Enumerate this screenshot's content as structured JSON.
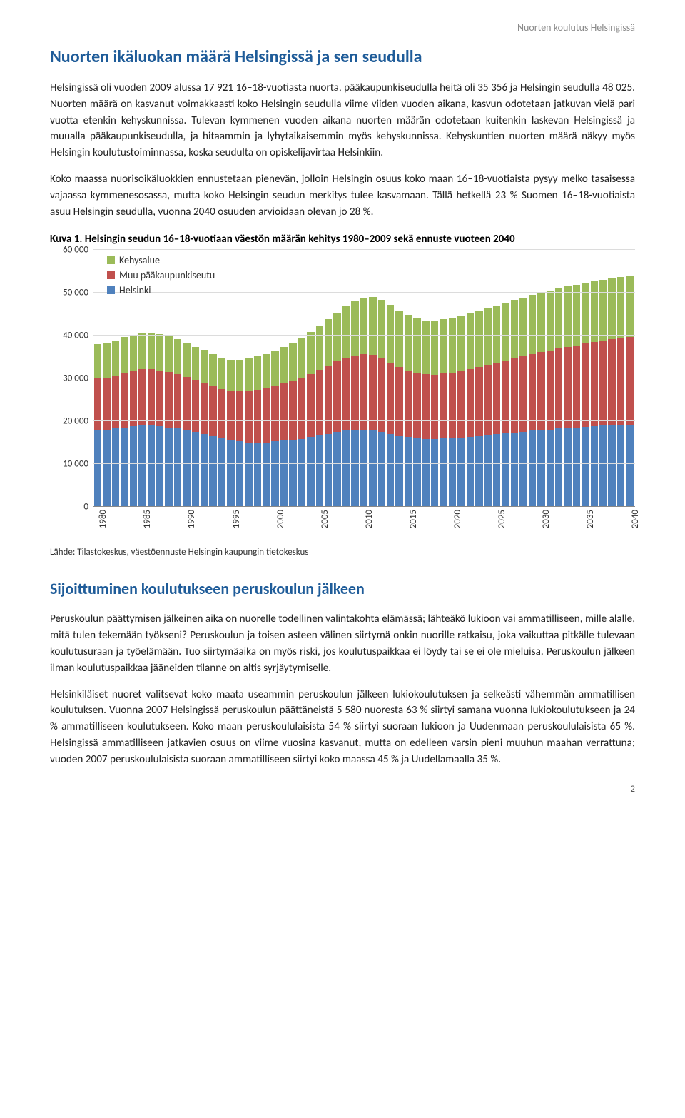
{
  "header_right": "Nuorten koulutus Helsingissä",
  "title": "Nuorten ikäluokan määrä Helsingissä ja sen seudulla",
  "para1": "Helsingissä oli vuoden 2009 alussa 17 921 16–18-vuotiasta nuorta, pääkaupunkiseudulla heitä oli 35 356 ja Helsingin seudulla 48 025. Nuorten määrä on kasvanut voimakkaasti koko Helsingin seudulla viime viiden vuoden aikana, kasvun odotetaan jatkuvan vielä pari vuotta etenkin kehyskunnissa. Tulevan kymmenen vuoden aikana nuorten määrän odotetaan kuitenkin laskevan Helsingissä ja muualla pääkaupunkiseudulla, ja hitaammin ja lyhytaikaisemmin myös kehyskunnissa. Kehyskuntien nuorten määrä näkyy myös Helsingin koulutustoiminnassa, koska seudulta on opiskelijavirtaa Helsinkiin.",
  "para2": "Koko maassa nuorisoikäluokkien ennustetaan pienevän, jolloin Helsingin osuus koko maan 16–18-vuotiaista pysyy melko tasaisessa vajaassa kymmenesosassa, mutta koko Helsingin seudun merkitys tulee kasvamaan. Tällä hetkellä 23 % Suomen 16–18-vuotiaista asuu Helsingin seudulla, vuonna 2040 osuuden arvioidaan olevan jo 28 %.",
  "chart_caption": "Kuva 1. Helsingin seudun 16–18-vuotiaan väestön määrän kehitys 1980–2009 sekä ennuste vuoteen 2040",
  "chart_source": "Lähde: Tilastokeskus, väestöennuste Helsingin kaupungin tietokeskus",
  "section2_title": "Sijoittuminen koulutukseen peruskoulun jälkeen",
  "para3": "Peruskoulun päättymisen jälkeinen aika on nuorelle todellinen valintakohta elämässä; lähteäkö lukioon vai ammatilliseen, mille alalle, mitä tulen tekemään työkseni? Peruskoulun ja toisen asteen välinen siirtymä onkin nuorille ratkaisu, joka vaikuttaa pitkälle tulevaan koulutusuraan ja työelämään. Tuo siirtymäaika on myös riski, jos koulutuspaikkaa ei löydy tai se ei ole mieluisa. Peruskoulun jälkeen ilman koulutuspaikkaa jääneiden tilanne on altis syrjäytymiselle.",
  "para4": "Helsinkiläiset nuoret valitsevat koko maata useammin peruskoulun jälkeen lukiokoulutuksen ja selkeästi vähemmän ammatillisen koulutuksen. Vuonna 2007 Helsingissä peruskoulun päättäneistä 5 580 nuoresta 63 % siirtyi samana vuonna lukiokoulutukseen ja 24 % ammatilliseen koulutukseen. Koko maan peruskoululaisista 54 % siirtyi suoraan lukioon ja Uudenmaan peruskoululaisista 65 %. Helsingissä ammatilliseen jatkavien osuus on viime vuosina kasvanut, mutta on edelleen varsin pieni muuhun maahan verrattuna; vuoden 2007 peruskoululaisista suoraan ammatilliseen siirtyi koko maassa 45 % ja Uudellamaalla 35 %.",
  "page_number": "2",
  "chart": {
    "type": "stacked-bar",
    "ymax": 60000,
    "ytick_step": 10000,
    "y_ticks": [
      0,
      10000,
      20000,
      30000,
      40000,
      50000,
      60000
    ],
    "x_labels_visible": [
      "1980",
      "1985",
      "1990",
      "1995",
      "2000",
      "2005",
      "2010",
      "2015",
      "2020",
      "2025",
      "2030",
      "2035",
      "2040"
    ],
    "x_label_step": 5,
    "colors": {
      "helsinki": "#4f81bd",
      "muu_pks": "#c0504d",
      "kehys": "#9bbb59",
      "grid": "#dcdcdc",
      "background": "#ffffff"
    },
    "legend": [
      {
        "label": "Kehysalue",
        "color": "#9bbb59"
      },
      {
        "label": "Muu pääkaupunkiseutu",
        "color": "#c0504d"
      },
      {
        "label": "Helsinki",
        "color": "#4f81bd"
      }
    ],
    "years": [
      1980,
      1981,
      1982,
      1983,
      1984,
      1985,
      1986,
      1987,
      1988,
      1989,
      1990,
      1991,
      1992,
      1993,
      1994,
      1995,
      1996,
      1997,
      1998,
      1999,
      2000,
      2001,
      2002,
      2003,
      2004,
      2005,
      2006,
      2007,
      2008,
      2009,
      2010,
      2011,
      2012,
      2013,
      2014,
      2015,
      2016,
      2017,
      2018,
      2019,
      2020,
      2021,
      2022,
      2023,
      2024,
      2025,
      2026,
      2027,
      2028,
      2029,
      2030,
      2031,
      2032,
      2033,
      2034,
      2035,
      2036,
      2037,
      2038,
      2039,
      2040
    ],
    "series": {
      "helsinki": [
        18000,
        18000,
        18200,
        18500,
        18800,
        19000,
        19000,
        18800,
        18500,
        18200,
        17800,
        17400,
        17000,
        16500,
        16000,
        15500,
        15200,
        15000,
        15000,
        15000,
        15200,
        15400,
        15600,
        15800,
        16200,
        16600,
        17000,
        17400,
        17700,
        17900,
        18000,
        17900,
        17500,
        17000,
        16500,
        16200,
        16000,
        15800,
        15800,
        15900,
        16000,
        16100,
        16300,
        16500,
        16700,
        16900,
        17100,
        17300,
        17500,
        17700,
        17900,
        18000,
        18200,
        18400,
        18500,
        18700,
        18800,
        18900,
        19000,
        19100,
        19200
      ],
      "muu_pks": [
        12000,
        12200,
        12500,
        12800,
        13000,
        13200,
        13200,
        13100,
        13000,
        12800,
        12500,
        12200,
        12000,
        11700,
        11500,
        11500,
        11700,
        12000,
        12300,
        12600,
        13000,
        13400,
        13800,
        14200,
        14800,
        15400,
        16000,
        16600,
        17100,
        17400,
        17600,
        17600,
        17200,
        16700,
        16200,
        15700,
        15400,
        15200,
        15100,
        15200,
        15400,
        15600,
        15900,
        16200,
        16500,
        16800,
        17100,
        17400,
        17700,
        18000,
        18300,
        18500,
        18800,
        19000,
        19200,
        19500,
        19700,
        19900,
        20100,
        20300,
        20500
      ],
      "kehys": [
        8000,
        8100,
        8200,
        8300,
        8400,
        8500,
        8500,
        8400,
        8300,
        8200,
        8000,
        7800,
        7600,
        7400,
        7300,
        7300,
        7400,
        7600,
        7800,
        8000,
        8300,
        8600,
        9000,
        9400,
        9800,
        10300,
        10800,
        11400,
        12000,
        12700,
        13200,
        13600,
        13700,
        13500,
        13200,
        12900,
        12700,
        12600,
        12600,
        12700,
        12800,
        12900,
        13100,
        13200,
        13300,
        13400,
        13500,
        13600,
        13700,
        13800,
        13900,
        14000,
        14000,
        14100,
        14100,
        14200,
        14200,
        14200,
        14300,
        14300,
        14300
      ]
    }
  }
}
